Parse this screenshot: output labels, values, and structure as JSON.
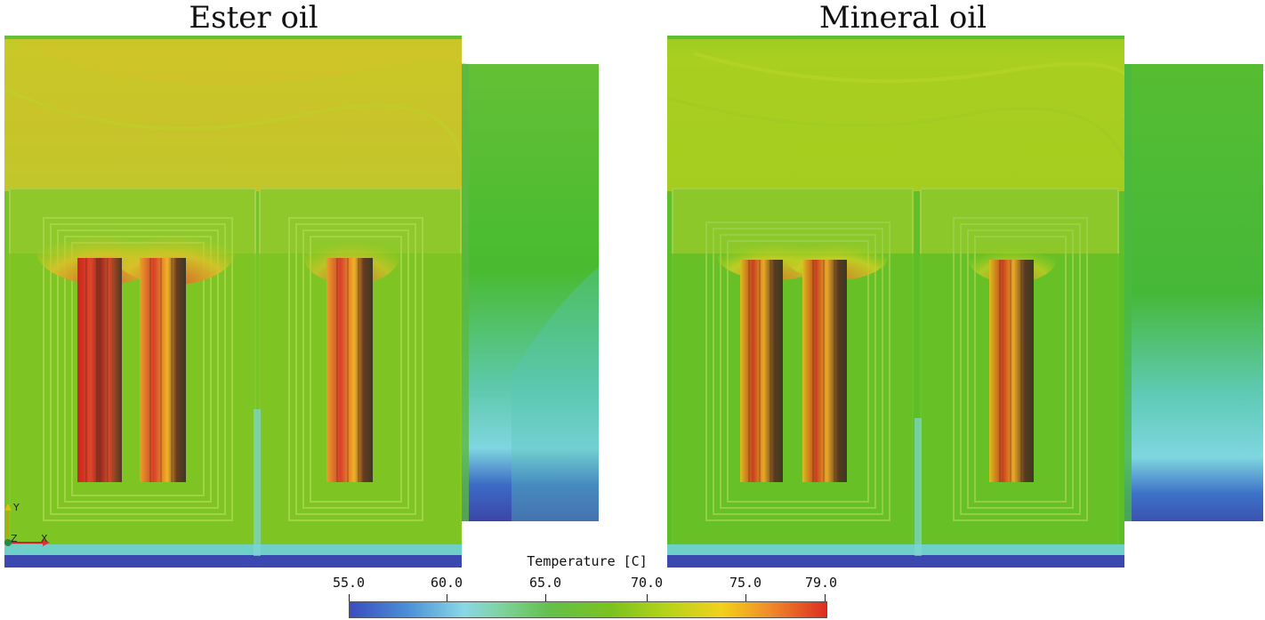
{
  "titles": {
    "left": "Ester oil",
    "right": "Mineral oil"
  },
  "legend": {
    "title": "Temperature [C]",
    "ticks": [
      "55.0",
      "60.0",
      "65.0",
      "70.0",
      "75.0",
      "79.0"
    ],
    "range": [
      55.0,
      79.0
    ],
    "tick_values": [
      55.0,
      60.0,
      65.0,
      70.0,
      75.0,
      79.0
    ]
  },
  "axes_labels": {
    "y": "Y",
    "z": "Z",
    "x": "X"
  },
  "colors": {
    "cold": "#3b4cc0",
    "cool": "#8ad8e6",
    "green": "#62c04a",
    "yellow_green": "#b2d31a",
    "yellow": "#f2d21a",
    "hot": "#dc2e22"
  }
}
